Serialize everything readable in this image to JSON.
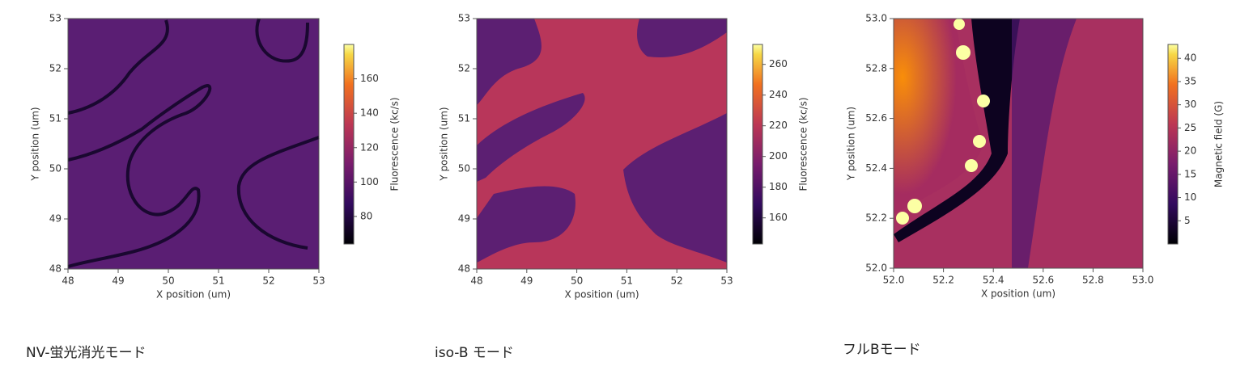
{
  "chart_data": [
    {
      "type": "image",
      "xlabel": "X position (um)",
      "ylabel": "Y position (um)",
      "xlim": [
        48,
        53
      ],
      "ylim": [
        48,
        53
      ],
      "xticks": [
        48,
        49,
        50,
        51,
        52,
        53
      ],
      "yticks": [
        48,
        49,
        50,
        51,
        52,
        53
      ],
      "colorbar": {
        "label": "Fluorescence (kc/s)",
        "lim": [
          64,
          180
        ],
        "ticks": [
          80,
          100,
          120,
          140,
          160
        ]
      },
      "caption": "NV-蛍光消光モード"
    },
    {
      "type": "image",
      "xlabel": "X position (um)",
      "ylabel": "Y position (um)",
      "xlim": [
        48,
        53
      ],
      "ylim": [
        48,
        53
      ],
      "xticks": [
        48,
        49,
        50,
        51,
        52,
        53
      ],
      "yticks": [
        48,
        49,
        50,
        51,
        52,
        53
      ],
      "colorbar": {
        "label": "Fluorescence (kc/s)",
        "lim": [
          143,
          273
        ],
        "ticks": [
          160,
          180,
          200,
          220,
          240,
          260
        ]
      },
      "caption": "iso-B モード"
    },
    {
      "type": "image",
      "xlabel": "X position (um)",
      "ylabel": "Y position (um)",
      "xlim": [
        52,
        53
      ],
      "ylim": [
        52,
        53
      ],
      "xticks": [
        {
          "value": 52,
          "label": "52.0"
        },
        52.2,
        52.4,
        52.6,
        52.8,
        {
          "value": 53,
          "label": "53.0"
        }
      ],
      "yticks": [
        {
          "value": 52,
          "label": "52.0"
        },
        52.2,
        52.4,
        52.6,
        52.8,
        {
          "value": 53,
          "label": "53.0"
        }
      ],
      "colorbar": {
        "label": "Magnetic field (G)",
        "lim": [
          0,
          43
        ],
        "ticks": [
          5,
          10,
          15,
          20,
          25,
          30,
          35,
          40
        ]
      },
      "caption": "フルBモード"
    }
  ]
}
